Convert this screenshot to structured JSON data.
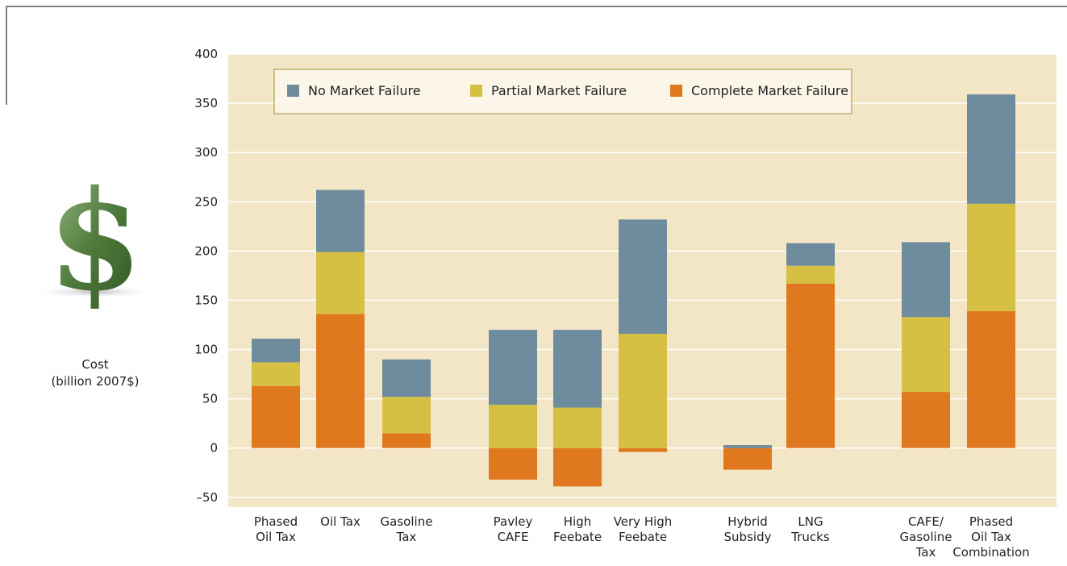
{
  "chart_data": {
    "type": "stacked-bar",
    "y_label": [
      "Cost",
      "(billion 2007$)"
    ],
    "categories": [
      "Phased\nOil Tax",
      "Oil Tax",
      "Gasoline\nTax",
      "Pavley\nCAFE",
      "High\nFeebate",
      "Very High\nFeebate",
      "Hybrid\nSubsidy",
      "LNG\nTrucks",
      "CAFE/\nGasoline\nTax",
      "Phased\nOil Tax\nCombination"
    ],
    "series": [
      {
        "name": "Complete Market Failure",
        "color": "#e07820",
        "values": [
          63,
          136,
          15,
          -32,
          -39,
          -4,
          -22,
          167,
          57,
          139
        ]
      },
      {
        "name": "Partial Market Failure",
        "color": "#d6c044",
        "values": [
          24,
          63,
          37,
          44,
          41,
          116,
          0,
          18,
          76,
          109
        ]
      },
      {
        "name": "No Market Failure",
        "color": "#6f8c9e",
        "values": [
          24,
          63,
          38,
          76,
          79,
          116,
          3,
          23,
          76,
          111
        ]
      }
    ],
    "legend_order": [
      2,
      1,
      0
    ],
    "ylim": [
      -60,
      400
    ],
    "yticks": [
      {
        "value": -50,
        "label": "–50"
      },
      0,
      50,
      100,
      150,
      200,
      250,
      300,
      350,
      400
    ],
    "grid": true
  }
}
